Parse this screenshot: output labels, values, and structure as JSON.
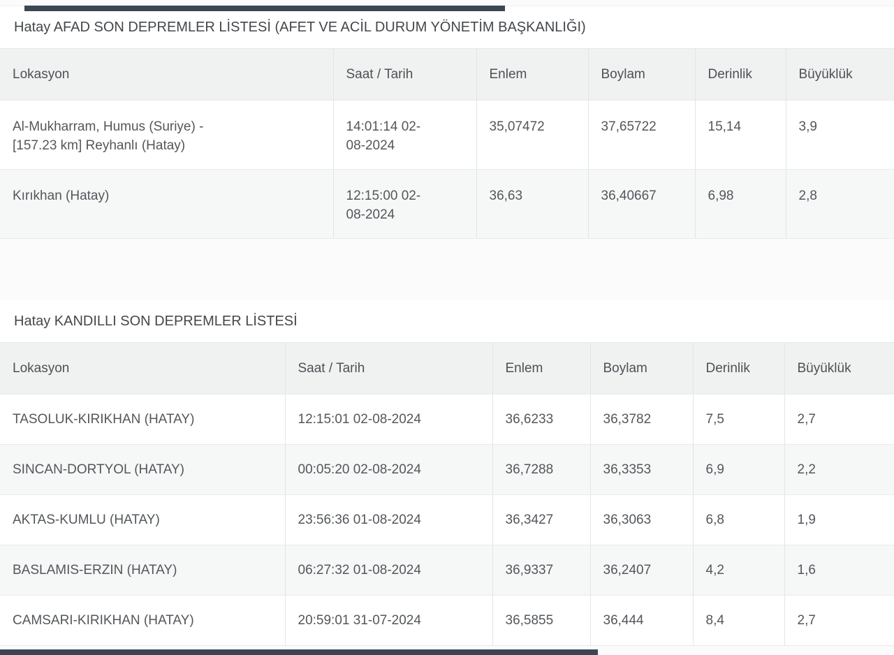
{
  "colors": {
    "edge_bar": "#3c4653",
    "header_row_bg": "#f0f1f1",
    "zebra_row_bg": "#f6f7f7"
  },
  "tables": [
    {
      "title": "Hatay AFAD SON DEPREMLER LİSTESİ (AFET VE ACİL DURUM YÖNETİM BAŞKANLIĞI)",
      "columns": [
        "Lokasyon",
        "Saat / Tarih",
        "Enlem",
        "Boylam",
        "Derinlik",
        "Büyüklük"
      ],
      "rows": [
        [
          "Al-Mukharram, Humus (Suriye) - [157.23 km] Reyhanlı (Hatay)",
          "14:01:14 02-08-2024",
          "35,07472",
          "37,65722",
          "15,14",
          "3,9"
        ],
        [
          "Kırıkhan (Hatay)",
          "12:15:00 02-08-2024",
          "36,63",
          "36,40667",
          "6,98",
          "2,8"
        ]
      ]
    },
    {
      "title": "Hatay KANDILLI SON DEPREMLER LİSTESİ",
      "columns": [
        "Lokasyon",
        "Saat / Tarih",
        "Enlem",
        "Boylam",
        "Derinlik",
        "Büyüklük"
      ],
      "rows": [
        [
          "TASOLUK-KIRIKHAN (HATAY)",
          "12:15:01 02-08-2024",
          "36,6233",
          "36,3782",
          "7,5",
          "2,7"
        ],
        [
          "SINCAN-DORTYOL (HATAY)",
          "00:05:20 02-08-2024",
          "36,7288",
          "36,3353",
          "6,9",
          "2,2"
        ],
        [
          "AKTAS-KUMLU (HATAY)",
          "23:56:36 01-08-2024",
          "36,3427",
          "36,3063",
          "6,8",
          "1,9"
        ],
        [
          "BASLAMIS-ERZIN (HATAY)",
          "06:27:32 01-08-2024",
          "36,9337",
          "36,2407",
          "4,2",
          "1,6"
        ],
        [
          "CAMSARI-KIRIKHAN (HATAY)",
          "20:59:01 31-07-2024",
          "36,5855",
          "36,444",
          "8,4",
          "2,7"
        ]
      ]
    }
  ]
}
